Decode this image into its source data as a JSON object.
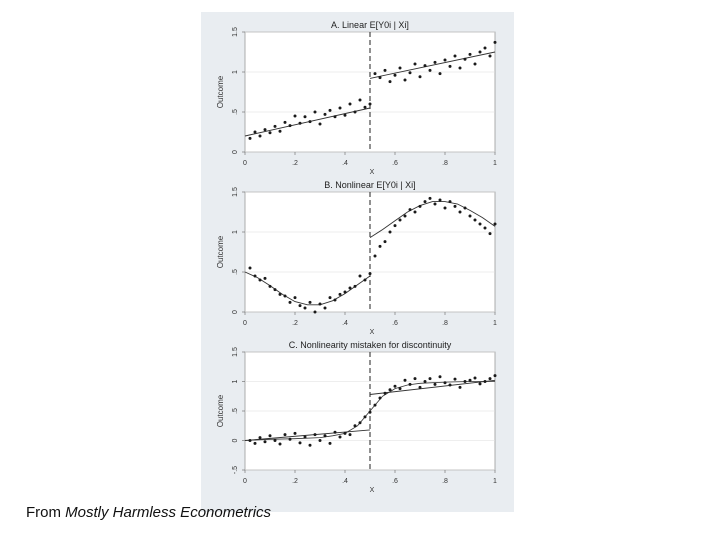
{
  "caption": {
    "prefix": "From ",
    "source": "Mostly Harmless Econometrics"
  },
  "colors": {
    "panel_bg": "#e9edf1",
    "plot_bg": "#ffffff",
    "points": "#1a1a1a",
    "lines": "#333333",
    "grid": "#dddddd"
  },
  "chart_data": [
    {
      "type": "scatter",
      "title": "A. Linear E[Y0i | Xi]",
      "xlabel": "X",
      "ylabel": "Outcome",
      "xlim": [
        0,
        1
      ],
      "ylim": [
        0,
        1.5
      ],
      "xticks": [
        0,
        0.2,
        0.4,
        0.6,
        0.8,
        1
      ],
      "xticklabels": [
        "0",
        ".2",
        ".4",
        ".6",
        ".8",
        "1"
      ],
      "yticks": [
        0,
        0.5,
        1,
        1.5
      ],
      "yticklabels": [
        "0",
        ".5",
        "1",
        "1.5"
      ],
      "cutoff": 0.5,
      "grid": true,
      "points": [
        [
          0.02,
          0.17
        ],
        [
          0.04,
          0.25
        ],
        [
          0.06,
          0.2
        ],
        [
          0.08,
          0.28
        ],
        [
          0.1,
          0.24
        ],
        [
          0.12,
          0.32
        ],
        [
          0.14,
          0.26
        ],
        [
          0.16,
          0.37
        ],
        [
          0.18,
          0.33
        ],
        [
          0.2,
          0.45
        ],
        [
          0.22,
          0.36
        ],
        [
          0.24,
          0.44
        ],
        [
          0.26,
          0.38
        ],
        [
          0.28,
          0.5
        ],
        [
          0.3,
          0.35
        ],
        [
          0.32,
          0.47
        ],
        [
          0.34,
          0.52
        ],
        [
          0.36,
          0.44
        ],
        [
          0.38,
          0.55
        ],
        [
          0.4,
          0.46
        ],
        [
          0.42,
          0.6
        ],
        [
          0.44,
          0.5
        ],
        [
          0.46,
          0.65
        ],
        [
          0.48,
          0.56
        ],
        [
          0.5,
          0.6
        ],
        [
          0.52,
          0.98
        ],
        [
          0.54,
          0.93
        ],
        [
          0.56,
          1.02
        ],
        [
          0.58,
          0.88
        ],
        [
          0.6,
          0.96
        ],
        [
          0.62,
          1.05
        ],
        [
          0.64,
          0.9
        ],
        [
          0.66,
          0.99
        ],
        [
          0.68,
          1.1
        ],
        [
          0.7,
          0.94
        ],
        [
          0.72,
          1.08
        ],
        [
          0.74,
          1.02
        ],
        [
          0.76,
          1.12
        ],
        [
          0.78,
          0.98
        ],
        [
          0.8,
          1.15
        ],
        [
          0.82,
          1.07
        ],
        [
          0.84,
          1.2
        ],
        [
          0.86,
          1.05
        ],
        [
          0.88,
          1.16
        ],
        [
          0.9,
          1.22
        ],
        [
          0.92,
          1.1
        ],
        [
          0.94,
          1.25
        ],
        [
          0.96,
          1.3
        ],
        [
          0.98,
          1.2
        ],
        [
          1.0,
          1.37
        ]
      ],
      "fit_left": [
        [
          0.0,
          0.2
        ],
        [
          0.5,
          0.55
        ]
      ],
      "fit_right": [
        [
          0.5,
          0.92
        ],
        [
          1.0,
          1.25
        ]
      ]
    },
    {
      "type": "scatter",
      "title": "B. Nonlinear E[Y0i | Xi]",
      "xlabel": "X",
      "ylabel": "Outcome",
      "xlim": [
        0,
        1
      ],
      "ylim": [
        0,
        1.5
      ],
      "xticks": [
        0,
        0.2,
        0.4,
        0.6,
        0.8,
        1
      ],
      "xticklabels": [
        "0",
        ".2",
        ".4",
        ".6",
        ".8",
        "1"
      ],
      "yticks": [
        0,
        0.5,
        1,
        1.5
      ],
      "yticklabels": [
        "0",
        ".5",
        "1",
        "1.5"
      ],
      "cutoff": 0.5,
      "grid": true,
      "points": [
        [
          0.02,
          0.55
        ],
        [
          0.04,
          0.45
        ],
        [
          0.06,
          0.4
        ],
        [
          0.08,
          0.42
        ],
        [
          0.1,
          0.32
        ],
        [
          0.12,
          0.28
        ],
        [
          0.14,
          0.22
        ],
        [
          0.16,
          0.2
        ],
        [
          0.18,
          0.12
        ],
        [
          0.2,
          0.18
        ],
        [
          0.22,
          0.08
        ],
        [
          0.24,
          0.05
        ],
        [
          0.26,
          0.12
        ],
        [
          0.28,
          0.0
        ],
        [
          0.3,
          0.1
        ],
        [
          0.32,
          0.05
        ],
        [
          0.34,
          0.18
        ],
        [
          0.36,
          0.15
        ],
        [
          0.38,
          0.22
        ],
        [
          0.4,
          0.25
        ],
        [
          0.42,
          0.3
        ],
        [
          0.44,
          0.32
        ],
        [
          0.46,
          0.45
        ],
        [
          0.48,
          0.4
        ],
        [
          0.5,
          0.48
        ],
        [
          0.52,
          0.7
        ],
        [
          0.54,
          0.82
        ],
        [
          0.56,
          0.88
        ],
        [
          0.58,
          1.0
        ],
        [
          0.6,
          1.08
        ],
        [
          0.62,
          1.15
        ],
        [
          0.64,
          1.2
        ],
        [
          0.66,
          1.28
        ],
        [
          0.68,
          1.25
        ],
        [
          0.7,
          1.32
        ],
        [
          0.72,
          1.38
        ],
        [
          0.74,
          1.42
        ],
        [
          0.76,
          1.35
        ],
        [
          0.78,
          1.4
        ],
        [
          0.8,
          1.3
        ],
        [
          0.82,
          1.38
        ],
        [
          0.84,
          1.32
        ],
        [
          0.86,
          1.25
        ],
        [
          0.88,
          1.3
        ],
        [
          0.9,
          1.2
        ],
        [
          0.92,
          1.15
        ],
        [
          0.94,
          1.1
        ],
        [
          0.96,
          1.05
        ],
        [
          0.98,
          0.98
        ],
        [
          1.0,
          1.1
        ]
      ],
      "fit_left": [
        [
          0.0,
          0.5
        ],
        [
          0.05,
          0.43
        ],
        [
          0.1,
          0.33
        ],
        [
          0.15,
          0.22
        ],
        [
          0.2,
          0.13
        ],
        [
          0.25,
          0.09
        ],
        [
          0.3,
          0.09
        ],
        [
          0.35,
          0.14
        ],
        [
          0.4,
          0.23
        ],
        [
          0.45,
          0.34
        ],
        [
          0.5,
          0.45
        ]
      ],
      "fit_right": [
        [
          0.5,
          0.93
        ],
        [
          0.55,
          1.03
        ],
        [
          0.6,
          1.14
        ],
        [
          0.65,
          1.25
        ],
        [
          0.7,
          1.33
        ],
        [
          0.75,
          1.38
        ],
        [
          0.8,
          1.38
        ],
        [
          0.85,
          1.35
        ],
        [
          0.9,
          1.27
        ],
        [
          0.95,
          1.18
        ],
        [
          1.0,
          1.07
        ]
      ]
    },
    {
      "type": "scatter",
      "title": "C. Nonlinearity mistaken for discontinuity",
      "xlabel": "X",
      "ylabel": "Outcome",
      "xlim": [
        0,
        1
      ],
      "ylim": [
        -0.5,
        1.5
      ],
      "xticks": [
        0,
        0.2,
        0.4,
        0.6,
        0.8,
        1
      ],
      "xticklabels": [
        "0",
        ".2",
        ".4",
        ".6",
        ".8",
        "1"
      ],
      "yticks": [
        -0.5,
        0,
        0.5,
        1,
        1.5
      ],
      "yticklabels": [
        "-.5",
        "0",
        ".5",
        "1",
        "1.5"
      ],
      "cutoff": 0.5,
      "grid": true,
      "points": [
        [
          0.02,
          0.0
        ],
        [
          0.04,
          -0.05
        ],
        [
          0.06,
          0.05
        ],
        [
          0.08,
          -0.02
        ],
        [
          0.1,
          0.08
        ],
        [
          0.12,
          0.0
        ],
        [
          0.14,
          -0.06
        ],
        [
          0.16,
          0.1
        ],
        [
          0.18,
          0.02
        ],
        [
          0.2,
          0.12
        ],
        [
          0.22,
          -0.04
        ],
        [
          0.24,
          0.06
        ],
        [
          0.26,
          -0.08
        ],
        [
          0.28,
          0.1
        ],
        [
          0.3,
          0.0
        ],
        [
          0.32,
          0.08
        ],
        [
          0.34,
          -0.05
        ],
        [
          0.36,
          0.14
        ],
        [
          0.38,
          0.06
        ],
        [
          0.4,
          0.12
        ],
        [
          0.42,
          0.1
        ],
        [
          0.44,
          0.25
        ],
        [
          0.46,
          0.3
        ],
        [
          0.48,
          0.4
        ],
        [
          0.5,
          0.48
        ],
        [
          0.52,
          0.6
        ],
        [
          0.54,
          0.72
        ],
        [
          0.56,
          0.8
        ],
        [
          0.58,
          0.86
        ],
        [
          0.6,
          0.92
        ],
        [
          0.62,
          0.88
        ],
        [
          0.64,
          1.02
        ],
        [
          0.66,
          0.95
        ],
        [
          0.68,
          1.05
        ],
        [
          0.7,
          0.9
        ],
        [
          0.72,
          1.0
        ],
        [
          0.74,
          1.05
        ],
        [
          0.76,
          0.95
        ],
        [
          0.78,
          1.08
        ],
        [
          0.8,
          0.98
        ],
        [
          0.82,
          0.94
        ],
        [
          0.84,
          1.04
        ],
        [
          0.86,
          0.9
        ],
        [
          0.88,
          1.0
        ],
        [
          0.9,
          1.02
        ],
        [
          0.92,
          1.06
        ],
        [
          0.94,
          0.96
        ],
        [
          0.96,
          1.0
        ],
        [
          0.98,
          1.05
        ],
        [
          1.0,
          1.1
        ]
      ],
      "fit_left": [
        [
          0.0,
          0.0
        ],
        [
          0.5,
          0.18
        ]
      ],
      "fit_right": [
        [
          0.5,
          0.78
        ],
        [
          1.0,
          1.02
        ]
      ],
      "curve": [
        [
          0.0,
          0.0
        ],
        [
          0.1,
          0.02
        ],
        [
          0.2,
          0.03
        ],
        [
          0.3,
          0.05
        ],
        [
          0.35,
          0.08
        ],
        [
          0.4,
          0.12
        ],
        [
          0.45,
          0.25
        ],
        [
          0.5,
          0.5
        ],
        [
          0.55,
          0.75
        ],
        [
          0.6,
          0.88
        ],
        [
          0.65,
          0.94
        ],
        [
          0.7,
          0.97
        ],
        [
          0.8,
          0.99
        ],
        [
          0.9,
          1.0
        ],
        [
          1.0,
          1.0
        ]
      ]
    }
  ]
}
